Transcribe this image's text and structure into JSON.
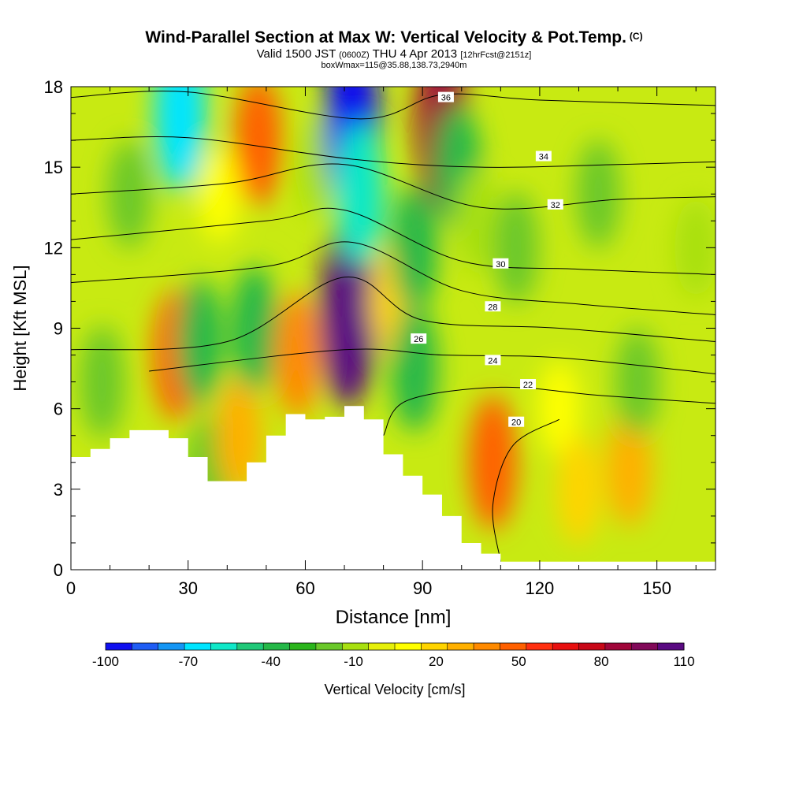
{
  "chart_data": {
    "type": "heatmap",
    "title": "Wind-Parallel Section at Max W: Vertical Velocity & Pot.Temp.",
    "title_mark": "(C)",
    "subtitle": {
      "valid": "Valid 1500 JST",
      "utc": "(0600Z)",
      "date": "THU 4 Apr 2013",
      "forecast": "[12hrFcst@2151z]"
    },
    "info_line": "boxWmax=115@35.88,138.73,2940m",
    "xlabel": "Distance [nm]",
    "ylabel": "Height [Kft MSL]",
    "xlim": [
      0,
      165
    ],
    "ylim": [
      0,
      18
    ],
    "x_ticks": [
      0,
      30,
      60,
      90,
      120,
      150
    ],
    "y_ticks": [
      0,
      3,
      6,
      9,
      12,
      15,
      18
    ],
    "colorbar": {
      "label": "Vertical Velocity [cm/s]",
      "tick_labels": [
        "-100",
        "-70",
        "-40",
        "-10",
        "20",
        "50",
        "80",
        "110"
      ],
      "colors": [
        "#1010f0",
        "#1f5df4",
        "#1496f5",
        "#00e5ff",
        "#10e8c8",
        "#20c878",
        "#25b848",
        "#2bb51c",
        "#6ac82a",
        "#a8e010",
        "#e6f00a",
        "#ffff00",
        "#ffd400",
        "#ffb000",
        "#ff8a00",
        "#ff6000",
        "#ff3010",
        "#e81010",
        "#c80818",
        "#a0063a",
        "#820a5a",
        "#5a0a82"
      ]
    },
    "terrain": [
      [
        0,
        4.2
      ],
      [
        5,
        4.5
      ],
      [
        10,
        4.9
      ],
      [
        15,
        5.2
      ],
      [
        20,
        5.2
      ],
      [
        25,
        4.9
      ],
      [
        30,
        4.2
      ],
      [
        35,
        3.3
      ],
      [
        40,
        3.3
      ],
      [
        45,
        4.0
      ],
      [
        50,
        5.0
      ],
      [
        55,
        5.8
      ],
      [
        60,
        5.6
      ],
      [
        65,
        5.7
      ],
      [
        70,
        6.1
      ],
      [
        75,
        5.6
      ],
      [
        80,
        4.3
      ],
      [
        85,
        3.5
      ],
      [
        90,
        2.8
      ],
      [
        95,
        2.0
      ],
      [
        100,
        1.0
      ],
      [
        105,
        0.6
      ],
      [
        110,
        0.3
      ],
      [
        120,
        0.3
      ],
      [
        165,
        0.3
      ]
    ],
    "vertical_velocity_cells": [
      {
        "x": 8,
        "y": 7,
        "w": -25
      },
      {
        "x": 15,
        "y": 14,
        "w": -20
      },
      {
        "x": 27,
        "y": 8,
        "w": 45
      },
      {
        "x": 28,
        "y": 17,
        "w": -75
      },
      {
        "x": 33,
        "y": 8.5,
        "w": -40
      },
      {
        "x": 35,
        "y": 3.7,
        "w": -20
      },
      {
        "x": 38,
        "y": 14,
        "w": 5
      },
      {
        "x": 43,
        "y": 5,
        "w": 30
      },
      {
        "x": 47,
        "y": 9,
        "w": -40
      },
      {
        "x": 48,
        "y": 16,
        "w": 45
      },
      {
        "x": 58,
        "y": 8,
        "w": 40
      },
      {
        "x": 63,
        "y": 15,
        "w": -10
      },
      {
        "x": 71,
        "y": 9.5,
        "w": 110
      },
      {
        "x": 72,
        "y": 16.5,
        "w": -100
      },
      {
        "x": 74,
        "y": 14,
        "w": -60
      },
      {
        "x": 82,
        "y": 10,
        "w": 20
      },
      {
        "x": 88,
        "y": 7.5,
        "w": -40
      },
      {
        "x": 88,
        "y": 12,
        "w": -40
      },
      {
        "x": 95,
        "y": 16.5,
        "w": 90
      },
      {
        "x": 99,
        "y": 15,
        "w": -40
      },
      {
        "x": 104,
        "y": 13,
        "w": -15
      },
      {
        "x": 108,
        "y": 4,
        "w": 50
      },
      {
        "x": 114,
        "y": 12,
        "w": -25
      },
      {
        "x": 125,
        "y": 6,
        "w": 5
      },
      {
        "x": 130,
        "y": 3,
        "w": 20
      },
      {
        "x": 135,
        "y": 14,
        "w": -20
      },
      {
        "x": 143,
        "y": 3.8,
        "w": 30
      },
      {
        "x": 145,
        "y": 7,
        "w": -20
      },
      {
        "x": 160,
        "y": 12,
        "w": -10
      }
    ],
    "theta_contours": [
      {
        "value": "20",
        "points": [
          [
            110,
            0.3
          ],
          [
            108,
            2.4
          ],
          [
            113,
            4.6
          ],
          [
            125,
            5.6
          ]
        ],
        "label_at": [
          114,
          5.5
        ]
      },
      {
        "value": "22",
        "points": [
          [
            80,
            5.0
          ],
          [
            86,
            6.3
          ],
          [
            110,
            6.8
          ],
          [
            135,
            6.5
          ],
          [
            165,
            6.2
          ]
        ],
        "label_at": [
          117,
          6.9
        ]
      },
      {
        "value": "24",
        "points": [
          [
            20,
            7.4
          ],
          [
            70,
            8.2
          ],
          [
            95,
            8.0
          ],
          [
            125,
            7.9
          ],
          [
            165,
            7.3
          ]
        ],
        "label_at": [
          108,
          7.8
        ]
      },
      {
        "value": "26",
        "points": [
          [
            0,
            8.2
          ],
          [
            40,
            8.5
          ],
          [
            70,
            10.9
          ],
          [
            90,
            9.3
          ],
          [
            125,
            9.0
          ],
          [
            165,
            8.5
          ]
        ],
        "label_at": [
          89,
          8.6
        ]
      },
      {
        "value": "28",
        "points": [
          [
            0,
            10.7
          ],
          [
            50,
            11.3
          ],
          [
            72,
            12.2
          ],
          [
            100,
            10.4
          ],
          [
            130,
            9.9
          ],
          [
            165,
            9.5
          ]
        ],
        "label_at": [
          108,
          9.8
        ]
      },
      {
        "value": "30",
        "points": [
          [
            0,
            12.3
          ],
          [
            50,
            13.0
          ],
          [
            70,
            13.4
          ],
          [
            100,
            11.5
          ],
          [
            130,
            11.2
          ],
          [
            165,
            11.0
          ]
        ],
        "label_at": [
          110,
          11.4
        ]
      },
      {
        "value": "32",
        "points": [
          [
            0,
            14.0
          ],
          [
            40,
            14.4
          ],
          [
            70,
            15.1
          ],
          [
            105,
            13.5
          ],
          [
            140,
            13.8
          ],
          [
            165,
            13.9
          ]
        ],
        "label_at": [
          124,
          13.6
        ]
      },
      {
        "value": "34",
        "points": [
          [
            0,
            16.0
          ],
          [
            30,
            16.1
          ],
          [
            72,
            15.3
          ],
          [
            105,
            15.0
          ],
          [
            140,
            15.1
          ],
          [
            165,
            15.2
          ]
        ],
        "label_at": [
          121,
          15.4
        ]
      },
      {
        "value": "36",
        "points": [
          [
            0,
            17.6
          ],
          [
            30,
            17.8
          ],
          [
            74,
            16.8
          ],
          [
            95,
            17.7
          ],
          [
            120,
            17.5
          ],
          [
            165,
            17.3
          ]
        ],
        "label_at": [
          96,
          17.6
        ]
      }
    ],
    "grid": false,
    "legend": "bottom"
  }
}
